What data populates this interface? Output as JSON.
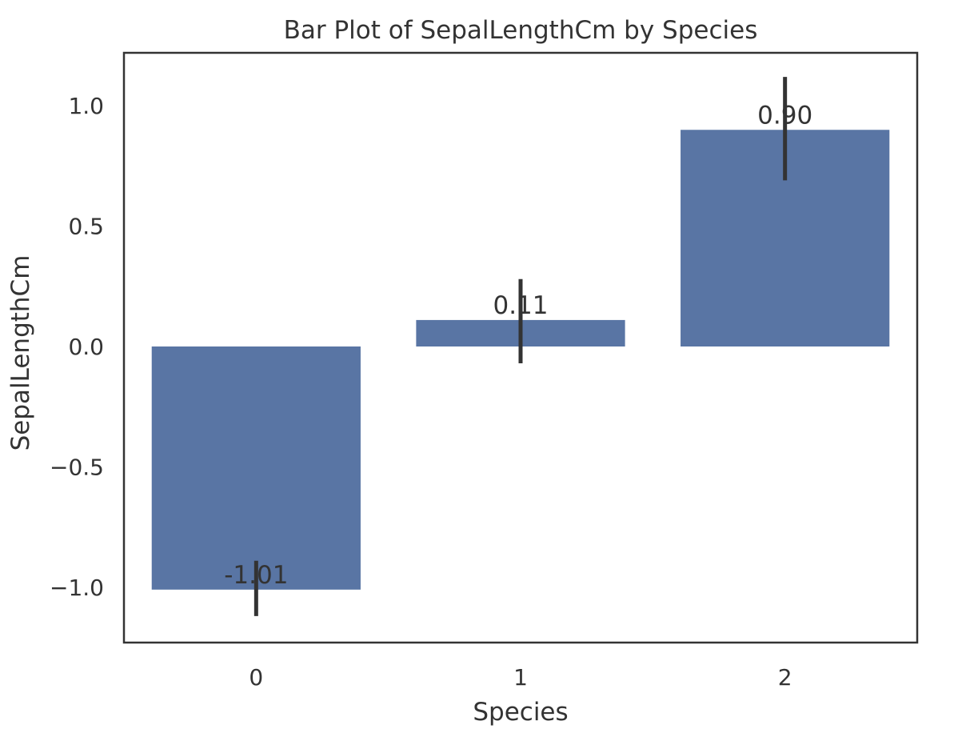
{
  "chart_data": {
    "type": "bar",
    "title": "Bar Plot of SepalLengthCm by Species",
    "xlabel": "Species",
    "ylabel": "SepalLengthCm",
    "categories": [
      "0",
      "1",
      "2"
    ],
    "values": [
      -1.01,
      0.11,
      0.9
    ],
    "data_labels": [
      "-1.01",
      "0.11",
      "0.90"
    ],
    "error_bars": [
      {
        "low": -1.12,
        "high": -0.89
      },
      {
        "low": -0.07,
        "high": 0.28
      },
      {
        "low": 0.69,
        "high": 1.12
      }
    ],
    "ylim": [
      -1.23,
      1.22
    ],
    "yticks": [
      -1.0,
      -0.5,
      0.0,
      0.5,
      1.0
    ],
    "ytick_labels": [
      "−1.0",
      "−0.5",
      "0.0",
      "0.5",
      "1.0"
    ],
    "grid": false,
    "bar_color": "#5975a4",
    "error_color": "#333333"
  }
}
